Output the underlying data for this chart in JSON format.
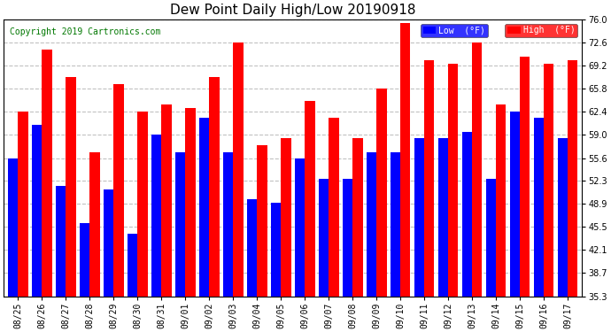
{
  "title": "Dew Point Daily High/Low 20190918",
  "copyright": "Copyright 2019 Cartronics.com",
  "dates": [
    "08/25",
    "08/26",
    "08/27",
    "08/28",
    "08/29",
    "08/30",
    "08/31",
    "09/01",
    "09/02",
    "09/03",
    "09/04",
    "09/05",
    "09/06",
    "09/07",
    "09/08",
    "09/09",
    "09/10",
    "09/11",
    "09/12",
    "09/13",
    "09/14",
    "09/15",
    "09/16",
    "09/17"
  ],
  "high_vals": [
    62.4,
    71.5,
    67.5,
    56.5,
    66.5,
    62.4,
    63.5,
    63.0,
    67.5,
    72.6,
    57.5,
    58.5,
    64.0,
    61.5,
    58.5,
    65.8,
    75.5,
    70.0,
    69.5,
    72.6,
    63.5,
    70.5,
    69.5,
    70.0
  ],
  "low_vals": [
    55.6,
    60.5,
    51.5,
    46.0,
    51.0,
    44.5,
    59.0,
    56.5,
    61.5,
    56.5,
    49.5,
    49.0,
    55.6,
    52.5,
    52.5,
    56.5,
    56.5,
    58.5,
    58.5,
    59.5,
    52.5,
    62.4,
    61.5,
    58.5
  ],
  "bar_color_high": "#ff0000",
  "bar_color_low": "#0000ff",
  "ylim_min": 35.3,
  "ylim_max": 76.0,
  "yticks": [
    35.3,
    38.7,
    42.1,
    45.5,
    48.9,
    52.3,
    55.6,
    59.0,
    62.4,
    65.8,
    69.2,
    72.6,
    76.0
  ],
  "background_color": "#ffffff",
  "grid_color": "#bbbbbb",
  "title_fontsize": 11,
  "tick_fontsize": 7,
  "copyright_color": "#007700",
  "copyright_fontsize": 7
}
